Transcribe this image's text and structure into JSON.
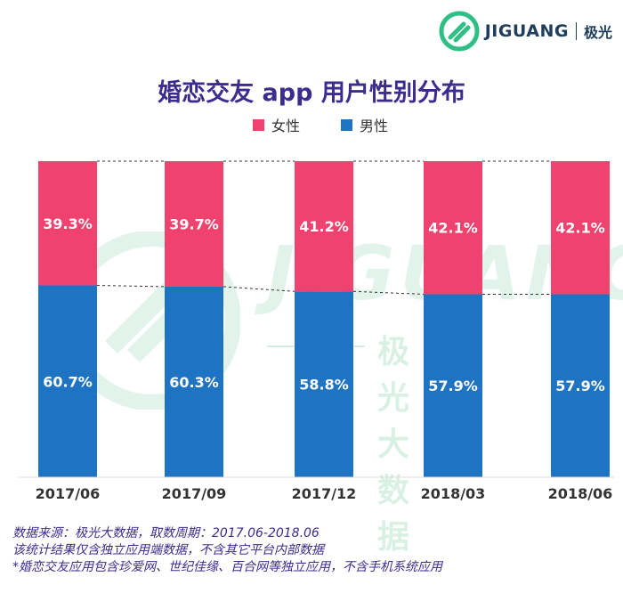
{
  "brand": {
    "name": "JIGUANG",
    "cn_name": "极光"
  },
  "watermark": {
    "word": "JIGUANG",
    "cn": "极光大数据"
  },
  "colors": {
    "female": "#f0426e",
    "male": "#1f73c3",
    "title": "#3d2c8e"
  },
  "chart_data": {
    "type": "bar",
    "stacked": true,
    "title": "婚恋交友 app 用户性别分布",
    "categories": [
      "2017/06",
      "2017/09",
      "2017/12",
      "2018/03",
      "2018/06"
    ],
    "series": [
      {
        "name": "女性",
        "values": [
          39.3,
          39.7,
          41.2,
          42.1,
          42.1
        ],
        "labels": [
          "39.3%",
          "39.7%",
          "41.2%",
          "42.1%",
          "42.1%"
        ]
      },
      {
        "name": "男性",
        "values": [
          60.7,
          60.3,
          58.8,
          57.9,
          57.9
        ],
        "labels": [
          "60.7%",
          "60.3%",
          "58.8%",
          "57.9%",
          "57.9%"
        ]
      }
    ],
    "ylim": [
      0,
      100
    ],
    "legend": "top",
    "grid": false
  },
  "footnotes": [
    "数据来源：极光大数据，取数周期：2017.06-2018.06",
    "该统计结果仅含独立应用端数据，不含其它平台内部数据",
    "*婚恋交友应用包含珍爱网、世纪佳缘、百合网等独立应用，不含手机系统应用"
  ]
}
